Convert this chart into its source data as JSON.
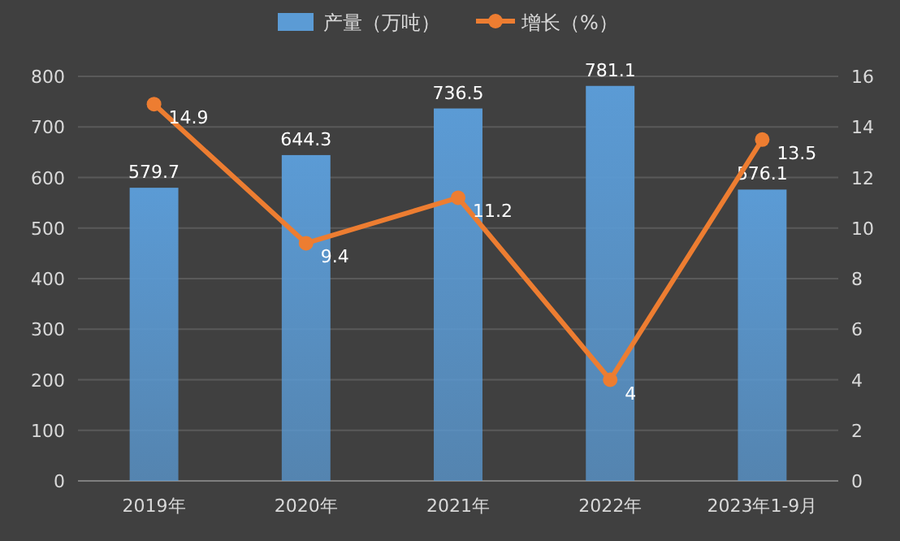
{
  "chart_data": {
    "type": "bar",
    "categories": [
      "2019年",
      "2020年",
      "2021年",
      "2022年",
      "2023年1-9月"
    ],
    "series": [
      {
        "name": "产量（万吨）",
        "color": "#5b9bd5",
        "values": [
          579.7,
          644.3,
          736.5,
          781.1,
          576.1
        ]
      },
      {
        "name": "增长（%）",
        "type": "line",
        "axis": "y2",
        "color": "#ed7d31",
        "marker": "circle",
        "values": [
          14.9,
          9.4,
          11.2,
          4,
          13.5
        ]
      }
    ],
    "ylim": [
      0,
      800
    ],
    "yticks": [
      0,
      100,
      200,
      300,
      400,
      500,
      600,
      700,
      800
    ],
    "y2lim": [
      0,
      16
    ],
    "y2ticks": [
      0,
      2,
      4,
      6,
      8,
      10,
      12,
      14,
      16
    ],
    "grid": "y",
    "legend": "top",
    "data_labels": true
  }
}
